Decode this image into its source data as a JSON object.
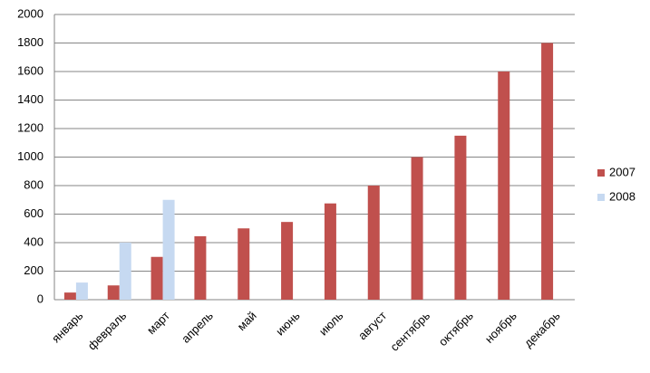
{
  "chart_data": {
    "type": "bar",
    "categories": [
      "январь",
      "февраль",
      "март",
      "апрель",
      "май",
      "июнь",
      "июль",
      "август",
      "сентябрь",
      "октябрь",
      "ноябрь",
      "декабрь"
    ],
    "series": [
      {
        "name": "2007",
        "color": "#c0504d",
        "values": [
          50,
          100,
          300,
          445,
          500,
          545,
          675,
          800,
          1000,
          1150,
          1600,
          1800
        ]
      },
      {
        "name": "2008",
        "color": "#c6d9f1",
        "values": [
          120,
          400,
          700,
          null,
          null,
          null,
          null,
          null,
          null,
          null,
          null,
          null
        ]
      }
    ],
    "ylim": [
      0,
      2000
    ],
    "yticks": [
      0,
      200,
      400,
      600,
      800,
      1000,
      1200,
      1400,
      1600,
      1800,
      2000
    ],
    "grid": true,
    "legend": "right"
  }
}
